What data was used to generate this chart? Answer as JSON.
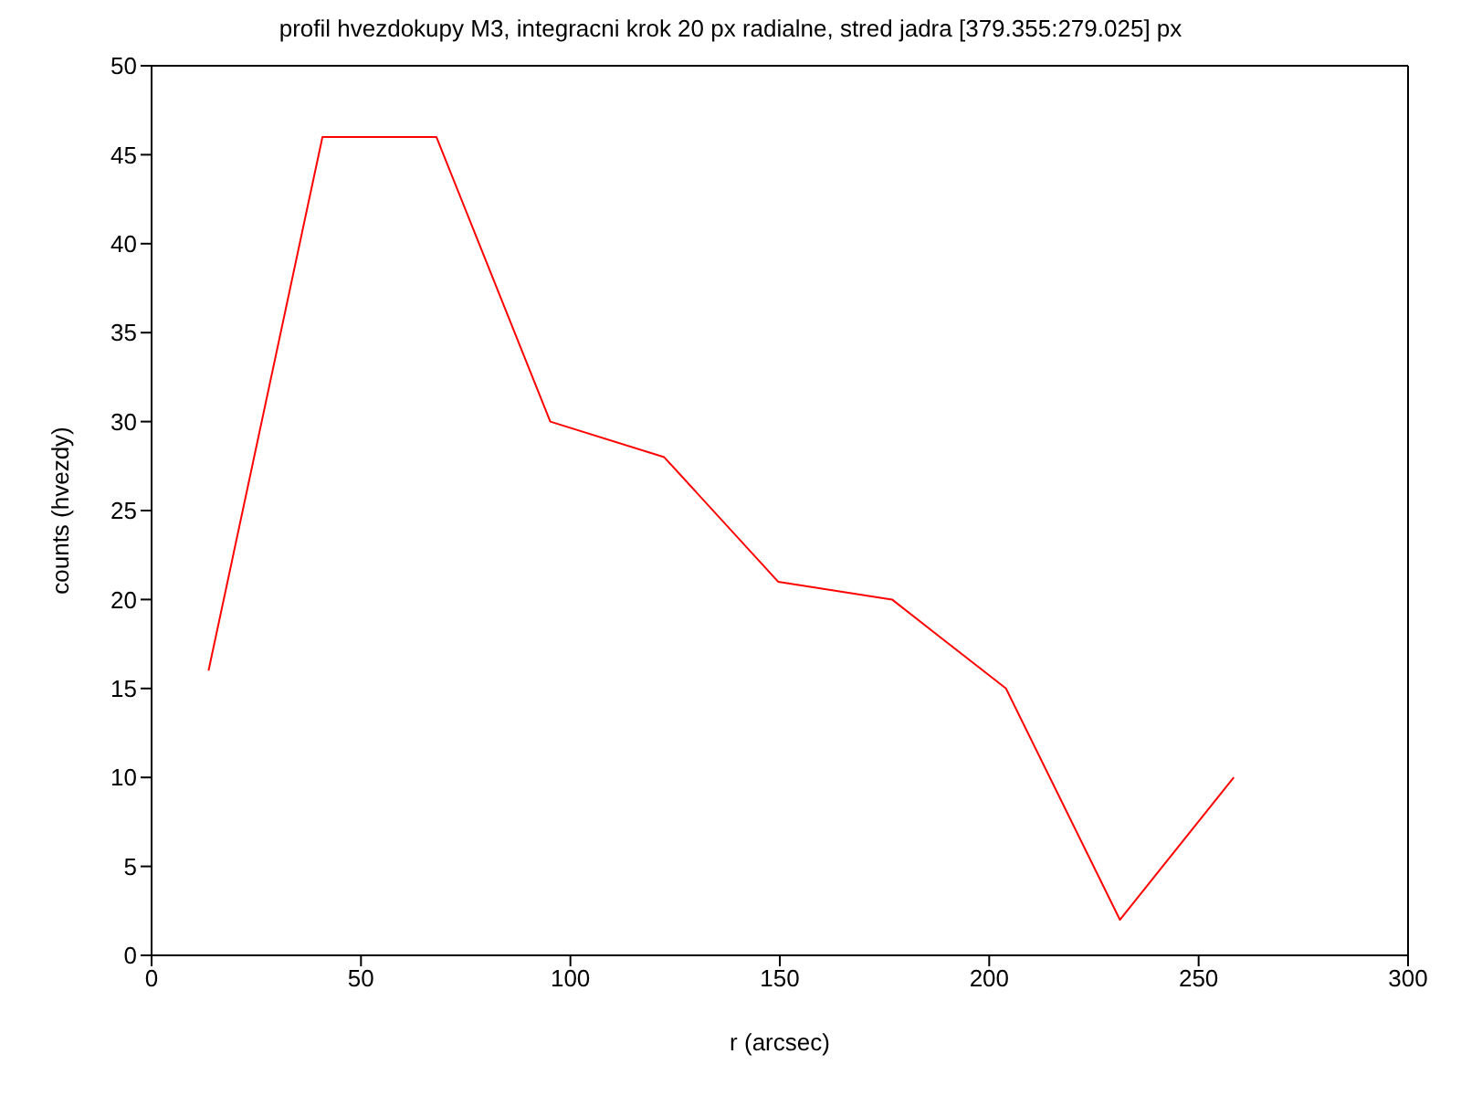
{
  "chart_data": {
    "type": "line",
    "title": "profil hvezdokupy M3, integracni krok 20 px radialne, stred jadra [379.355:279.025] px",
    "xlabel": "r (arcsec)",
    "ylabel": "counts (hvezdy)",
    "x": [
      13.6,
      40.8,
      68.0,
      95.2,
      122.4,
      149.6,
      176.8,
      204.0,
      231.2,
      258.4
    ],
    "series": [
      {
        "color": "#ff0000",
        "values": [
          16,
          46,
          46,
          30,
          28,
          21,
          20,
          15,
          2,
          10
        ]
      }
    ],
    "xlim": [
      0,
      300
    ],
    "xticks": [
      0,
      50,
      100,
      150,
      200,
      250,
      300
    ],
    "ylim": [
      0,
      50
    ],
    "yticks": [
      0,
      5,
      10,
      15,
      20,
      25,
      30,
      35,
      40,
      45,
      50
    ],
    "grid": false,
    "legend": false,
    "marker": "none",
    "line_style": "solid"
  }
}
